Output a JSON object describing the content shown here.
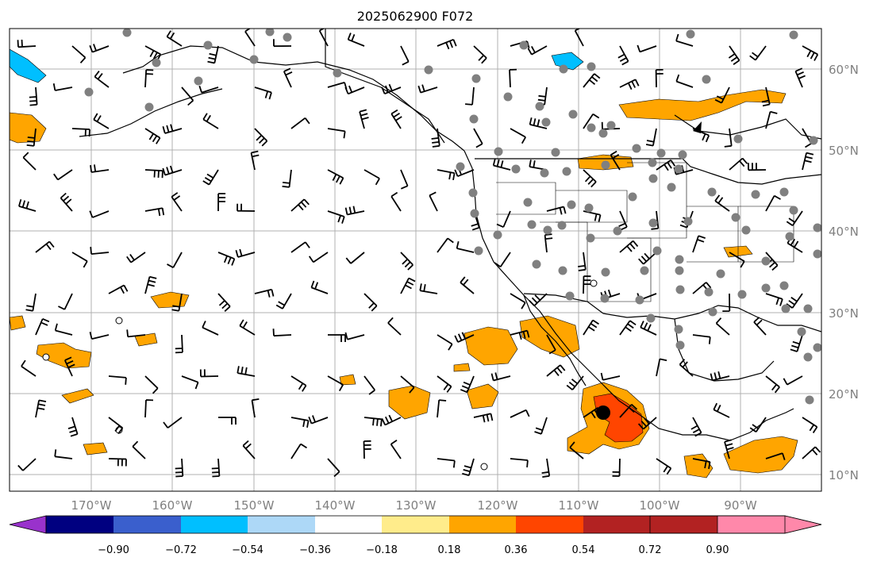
{
  "title": "2025062900 F072",
  "lon_labels": [
    "170°W",
    "160°W",
    "150°W",
    "140°W",
    "130°W",
    "120°W",
    "110°W",
    "100°W",
    "90°W"
  ],
  "lat_labels": [
    "60°N",
    "50°N",
    "40°N",
    "30°N",
    "20°N",
    "10°N"
  ],
  "colorbar": {
    "colors": [
      "#9932cc",
      "#000080",
      "#3a5fcd",
      "#00bfff",
      "#add8f7",
      "#ffffff",
      "#ffec8b",
      "#ffa500",
      "#ff4500",
      "#b22222",
      "#ff88aa"
    ],
    "tick_labels": [
      "−0.90",
      "−0.72",
      "−0.54",
      "−0.36",
      "−0.18",
      "0.18",
      "0.36",
      "0.54",
      "0.72",
      "0.90"
    ]
  },
  "map": {
    "land_line_color": "#000000",
    "grid_color": "#b0b0b0",
    "station_color": "#808080",
    "marker_color": "#000000"
  }
}
